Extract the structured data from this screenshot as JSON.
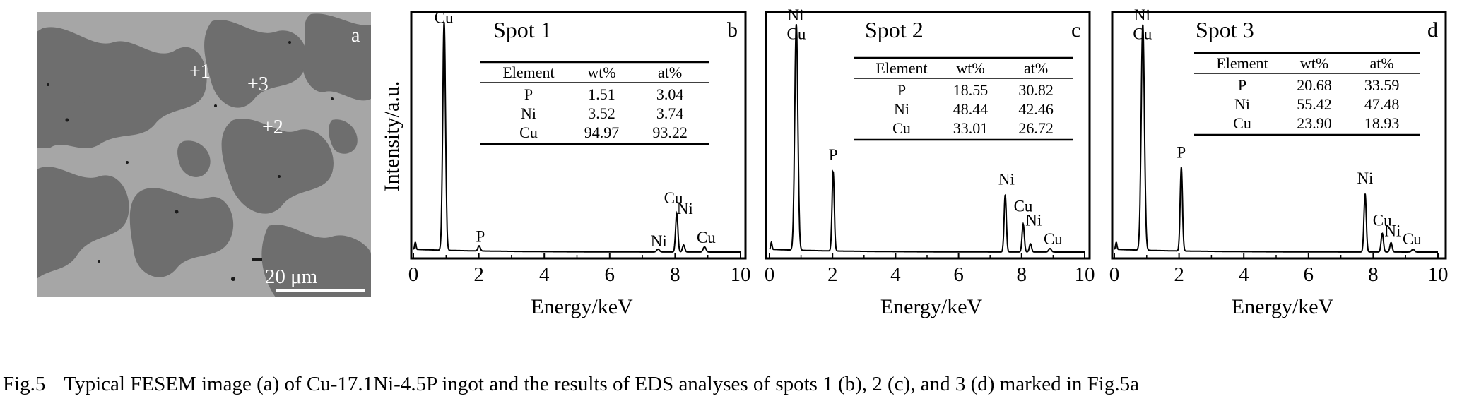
{
  "micrograph": {
    "panel_letter": "a",
    "scale_bar_label": "20 μm",
    "spot_markers": [
      "+1",
      "+3",
      "+2"
    ]
  },
  "shared_axes": {
    "xlabel": "Energy/keV",
    "ylabel": "Intensity/a.u.",
    "x_ticks": [
      "0",
      "2",
      "4",
      "6",
      "8",
      "10"
    ]
  },
  "table_header": [
    "Element",
    "wt%",
    "at%"
  ],
  "chart_data": [
    {
      "type": "line",
      "panel_letter": "b",
      "title": "Spot 1",
      "xlabel": "Energy/keV",
      "ylabel": "Intensity/a.u.",
      "xlim": [
        0,
        10
      ],
      "ylim": [
        0,
        1
      ],
      "peaks": [
        {
          "energy": 0.94,
          "intensity": 0.98,
          "width": 0.06
        },
        {
          "energy": 2.01,
          "intensity": 0.022,
          "width": 0.05
        },
        {
          "energy": 7.48,
          "intensity": 0.012,
          "width": 0.06
        },
        {
          "energy": 8.05,
          "intensity": 0.165,
          "width": 0.05
        },
        {
          "energy": 8.26,
          "intensity": 0.03,
          "width": 0.05
        },
        {
          "energy": 8.9,
          "intensity": 0.022,
          "width": 0.06
        }
      ],
      "peak_labels": [
        {
          "text": "Cu",
          "energy": 0.93,
          "intensity": 0.99
        },
        {
          "text": "P",
          "energy": 2.05,
          "intensity": 0.05
        },
        {
          "text": "Ni",
          "energy": 7.5,
          "intensity": 0.03
        },
        {
          "text": "Cu",
          "energy": 7.95,
          "intensity": 0.215
        },
        {
          "text": "Ni",
          "energy": 8.3,
          "intensity": 0.17
        },
        {
          "text": "Cu",
          "energy": 8.95,
          "intensity": 0.045
        }
      ],
      "table": {
        "rows": [
          {
            "element": "P",
            "wt": "1.51",
            "at": "3.04"
          },
          {
            "element": "Ni",
            "wt": "3.52",
            "at": "3.74"
          },
          {
            "element": "Cu",
            "wt": "94.97",
            "at": "93.22"
          }
        ]
      }
    },
    {
      "type": "line",
      "panel_letter": "c",
      "title": "Spot 2",
      "xlabel": "Energy/keV",
      "ylabel": "",
      "xlim": [
        0,
        10
      ],
      "ylim": [
        0,
        1
      ],
      "peaks": [
        {
          "energy": 0.85,
          "intensity": 0.97,
          "width": 0.07
        },
        {
          "energy": 2.02,
          "intensity": 0.34,
          "width": 0.05
        },
        {
          "energy": 7.48,
          "intensity": 0.245,
          "width": 0.05
        },
        {
          "energy": 8.05,
          "intensity": 0.12,
          "width": 0.05
        },
        {
          "energy": 8.28,
          "intensity": 0.035,
          "width": 0.05
        },
        {
          "energy": 8.9,
          "intensity": 0.015,
          "width": 0.06
        }
      ],
      "peak_labels": [
        {
          "text": "Ni",
          "energy": 0.83,
          "intensity": 1.0
        },
        {
          "text": "Cu",
          "energy": 0.85,
          "intensity": 0.92
        },
        {
          "text": "P",
          "energy": 2.02,
          "intensity": 0.4
        },
        {
          "text": "Ni",
          "energy": 7.52,
          "intensity": 0.295
        },
        {
          "text": "Cu",
          "energy": 8.05,
          "intensity": 0.18
        },
        {
          "text": "Ni",
          "energy": 8.38,
          "intensity": 0.12
        },
        {
          "text": "Cu",
          "energy": 9.0,
          "intensity": 0.04
        }
      ],
      "table": {
        "rows": [
          {
            "element": "P",
            "wt": "18.55",
            "at": "30.82"
          },
          {
            "element": "Ni",
            "wt": "48.44",
            "at": "42.46"
          },
          {
            "element": "Cu",
            "wt": "33.01",
            "at": "26.72"
          }
        ]
      }
    },
    {
      "type": "line",
      "panel_letter": "d",
      "title": "Spot 3",
      "xlabel": "Energy/keV",
      "ylabel": "",
      "xlim": [
        0,
        10
      ],
      "ylim": [
        0,
        1
      ],
      "peaks": [
        {
          "energy": 0.88,
          "intensity": 0.97,
          "width": 0.07
        },
        {
          "energy": 2.07,
          "intensity": 0.36,
          "width": 0.05
        },
        {
          "energy": 7.75,
          "intensity": 0.25,
          "width": 0.05
        },
        {
          "energy": 8.28,
          "intensity": 0.08,
          "width": 0.05
        },
        {
          "energy": 8.55,
          "intensity": 0.04,
          "width": 0.05
        },
        {
          "energy": 9.23,
          "intensity": 0.012,
          "width": 0.06
        }
      ],
      "peak_labels": [
        {
          "text": "Ni",
          "energy": 0.86,
          "intensity": 1.0
        },
        {
          "text": "Cu",
          "energy": 0.87,
          "intensity": 0.92
        },
        {
          "text": "P",
          "energy": 2.07,
          "intensity": 0.41
        },
        {
          "text": "Ni",
          "energy": 7.75,
          "intensity": 0.3
        },
        {
          "text": "Cu",
          "energy": 8.28,
          "intensity": 0.12
        },
        {
          "text": "Ni",
          "energy": 8.6,
          "intensity": 0.075
        },
        {
          "text": "Cu",
          "energy": 9.2,
          "intensity": 0.04
        }
      ],
      "table": {
        "rows": [
          {
            "element": "P",
            "wt": "20.68",
            "at": "33.59"
          },
          {
            "element": "Ni",
            "wt": "55.42",
            "at": "47.48"
          },
          {
            "element": "Cu",
            "wt": "23.90",
            "at": "18.93"
          }
        ]
      }
    }
  ],
  "caption": {
    "label": "Fig.5",
    "text": "Typical FESEM image (a) of Cu-17.1Ni-4.5P ingot and the results of EDS analyses of spots 1 (b), 2 (c), and 3 (d) marked in Fig.5a"
  }
}
